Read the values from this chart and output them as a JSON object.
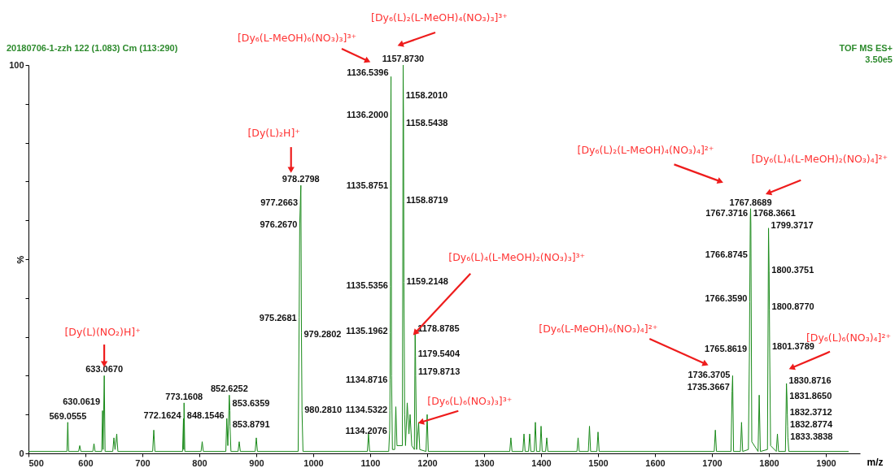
{
  "chart_data": {
    "type": "line",
    "xlabel": "m/z",
    "ylabel": "%",
    "color": "#1a8a1a",
    "xlim": [
      500,
      1960
    ],
    "xticks": [
      500,
      600,
      700,
      800,
      900,
      1000,
      1100,
      1200,
      1300,
      1400,
      1500,
      1600,
      1700,
      1800,
      1900
    ],
    "ylim": [
      0,
      100
    ],
    "yticks": [
      0,
      {
        "value": 10,
        "label": null
      },
      {
        "value": 20,
        "label": null
      },
      {
        "value": 30,
        "label": null
      },
      {
        "value": 40,
        "label": null
      },
      {
        "value": 50,
        "label": null
      },
      {
        "value": 60,
        "label": null
      },
      {
        "value": 70,
        "label": null
      },
      {
        "value": 80,
        "label": null
      },
      {
        "value": 90,
        "label": null
      },
      100
    ],
    "x": [
      500,
      567.5,
      569,
      570.5,
      588,
      590,
      592,
      613,
      615,
      617,
      628.5,
      630.06,
      631,
      633.07,
      634.5,
      648,
      650,
      652,
      655,
      657,
      718,
      720,
      722,
      770.5,
      772.16,
      772.7,
      773.16,
      774.5,
      803,
      805,
      807,
      846.5,
      848.15,
      850,
      852.63,
      853.64,
      853.88,
      855.5,
      868,
      870,
      872,
      898,
      900,
      902,
      973.5,
      975.27,
      976.27,
      977.27,
      978.28,
      979.28,
      980.28,
      982,
      1095,
      1097,
      1099,
      1132.5,
      1134.21,
      1134.53,
      1134.87,
      1135.2,
      1135.54,
      1135.88,
      1136.2,
      1136.54,
      1137.5,
      1139,
      1143,
      1145,
      1147,
      1156.5,
      1157.87,
      1158.2,
      1158.54,
      1158.87,
      1159.21,
      1160.5,
      1162,
      1165,
      1168,
      1170,
      1173,
      1177.5,
      1178.88,
      1179.54,
      1179.87,
      1181.5,
      1185,
      1187,
      1198,
      1200,
      1202,
      1345,
      1347,
      1349,
      1368,
      1370,
      1372,
      1378,
      1380,
      1382,
      1388,
      1390,
      1392,
      1398,
      1400,
      1402,
      1408,
      1410,
      1412,
      1463,
      1465,
      1467,
      1483,
      1485,
      1487,
      1498,
      1500,
      1502,
      1704,
      1706,
      1708,
      1733.5,
      1735.37,
      1736.37,
      1738,
      1750,
      1752,
      1754,
      1764,
      1765.86,
      1766.36,
      1766.87,
      1767.37,
      1767.87,
      1768.37,
      1770,
      1781,
      1783,
      1785,
      1797.5,
      1799.37,
      1800.38,
      1800.88,
      1801.38,
      1803,
      1813,
      1815,
      1817,
      1829,
      1830.87,
      1831.87,
      1832.37,
      1832.88,
      1833.38,
      1835,
      1940
    ],
    "values": [
      0.5,
      0.5,
      8,
      0.5,
      0.5,
      2,
      0.5,
      0.5,
      2.5,
      0.5,
      0.5,
      11,
      1,
      20,
      0.5,
      0.5,
      4,
      1,
      5,
      0.5,
      0.5,
      6,
      0.5,
      0.5,
      9,
      1,
      13,
      0.5,
      0.5,
      3,
      0.5,
      0.5,
      9,
      2,
      15,
      11,
      7,
      0.5,
      0.5,
      3,
      0.5,
      0.5,
      4,
      0.5,
      0.5,
      35,
      59,
      64,
      69,
      31,
      11,
      0.5,
      0.5,
      5,
      0.5,
      0.5,
      6,
      11,
      19,
      31,
      43,
      69,
      87,
      97,
      20,
      1,
      1,
      12,
      2,
      2,
      100,
      92,
      85,
      65,
      44,
      10,
      2,
      13,
      5,
      10,
      2,
      1,
      31,
      25,
      20,
      1,
      8,
      1,
      0.5,
      10,
      0.5,
      0.5,
      4,
      0.5,
      0.5,
      5,
      0.5,
      0.5,
      5,
      0.5,
      0.5,
      8,
      0.5,
      0.5,
      7,
      0.5,
      0.5,
      4,
      0.5,
      0.5,
      4,
      0.5,
      0.5,
      7,
      0.5,
      0.5,
      5.5,
      0.5,
      0.5,
      6,
      0.5,
      0.5,
      16,
      20,
      0.5,
      0.5,
      8,
      0.5,
      1,
      26,
      39,
      50,
      61,
      63,
      59,
      3,
      0.5,
      15,
      0.5,
      1,
      58,
      47,
      37,
      27,
      2,
      0.5,
      5,
      0.5,
      0.5,
      18,
      14,
      10,
      7,
      4,
      0.5,
      0.5
    ],
    "annotations": [
      "20180706-1-zzh 122 (1.083) Cm (113:290)",
      "TOF MS ES+",
      "3.50e5",
      "[Dy₆(L-MeOH)₆(NO₃)₃]³⁺",
      "[Dy₆(L)₂(L-MeOH)₄(NO₃)₃]³⁺",
      {
        "text": "[Dy(L)(NO₂)H]⁺",
        "x": 633,
        "y": 23
      },
      {
        "text": "[Dy(L)₂H]⁺",
        "x": 961,
        "y": 73
      },
      {
        "text": "[Dy₆(L)₄(L-MeOH)₂(NO₃)₃]³⁺",
        "x": 1178.88,
        "y": 31
      },
      {
        "text": "[Dy₆(L)₆(NO₃)₃]³⁺",
        "x": 1189,
        "y": 8
      },
      {
        "text": "[Dy₆(L-MeOH)₆(NO₃)₄]²⁺",
        "x": 1689,
        "y": 23
      },
      {
        "text": "[Dy₆(L)₂(L-MeOH)₄(NO₃)₄]²⁺",
        "x": 1715,
        "y": 70
      },
      {
        "text": "[Dy₆(L)₄(L-MeOH)₂(NO₃)₄]²⁺",
        "x": 1799,
        "y": 67
      },
      {
        "text": "[Dy₆(L)₆(NO₃)₄]²⁺",
        "x": 1840,
        "y": 22
      },
      {
        "text": "569.0555",
        "x": 569.0555,
        "y": 8
      },
      {
        "text": "630.0619",
        "x": 630.0619,
        "y": 13.2
      },
      {
        "text": "633.0670",
        "x": 633.067,
        "y": 20
      },
      {
        "text": "772.1624",
        "x": 772.1624,
        "y": 9.6
      },
      {
        "text": "773.1608",
        "x": 773.1608,
        "y": 13
      },
      {
        "text": "848.1546",
        "x": 848.1546,
        "y": 9.6
      },
      {
        "text": "852.6252",
        "x": 852.6252,
        "y": 15
      },
      {
        "text": "853.6359",
        "x": 853.6359,
        "y": 12.8
      },
      {
        "text": "853.8791",
        "x": 853.8791,
        "y": 7.3
      },
      {
        "text": "975.2681",
        "x": 975.2681,
        "y": 34.7
      },
      {
        "text": "976.2670",
        "x": 976.267,
        "y": 58.8
      },
      {
        "text": "977.2663",
        "x": 977.2663,
        "y": 64.4
      },
      {
        "text": "978.2798",
        "x": 978.2798,
        "y": 69
      },
      {
        "text": "979.2802",
        "x": 979.2802,
        "y": 30.5
      },
      {
        "text": "980.2810",
        "x": 980.281,
        "y": 11.1
      },
      {
        "text": "1134.2076",
        "x": 1134.2076,
        "y": 5.6
      },
      {
        "text": "1134.5322",
        "x": 1134.5322,
        "y": 11.1
      },
      {
        "text": "1134.8716",
        "x": 1134.8716,
        "y": 18.8
      },
      {
        "text": "1135.1962",
        "x": 1135.1962,
        "y": 31.4
      },
      {
        "text": "1135.5356",
        "x": 1135.5356,
        "y": 43.1
      },
      {
        "text": "1135.8751",
        "x": 1135.8751,
        "y": 68.8
      },
      {
        "text": "1136.2000",
        "x": 1136.2,
        "y": 87
      },
      {
        "text": "1136.5396",
        "x": 1136.5396,
        "y": 97.9
      },
      {
        "text": "1157.8730",
        "x": 1157.873,
        "y": 100
      },
      {
        "text": "1158.2010",
        "x": 1158.201,
        "y": 92.1
      },
      {
        "text": "1158.5438",
        "x": 1158.5438,
        "y": 84.9
      },
      {
        "text": "1158.8719",
        "x": 1158.8719,
        "y": 65.1
      },
      {
        "text": "1159.2148",
        "x": 1159.2148,
        "y": 44.1
      },
      {
        "text": "1178.8785",
        "x": 1178.8785,
        "y": 32
      },
      {
        "text": "1179.5404",
        "x": 1179.5404,
        "y": 25.5
      },
      {
        "text": "1179.8713",
        "x": 1179.8713,
        "y": 20.9
      },
      {
        "text": "1735.3667",
        "x": 1735.3667,
        "y": 16.9
      },
      {
        "text": "1736.3705",
        "x": 1736.3705,
        "y": 20
      },
      {
        "text": "1765.8619",
        "x": 1765.8619,
        "y": 26.8
      },
      {
        "text": "1766.3590",
        "x": 1766.359,
        "y": 39.7
      },
      {
        "text": "1766.8745",
        "x": 1766.8745,
        "y": 51
      },
      {
        "text": "1767.3716",
        "x": 1767.3716,
        "y": 61.7
      },
      {
        "text": "1767.8689",
        "x": 1767.8689,
        "y": 63
      },
      {
        "text": "1768.3661",
        "x": 1768.3661,
        "y": 61.7
      },
      {
        "text": "1799.3717",
        "x": 1799.3717,
        "y": 58.6
      },
      {
        "text": "1800.3751",
        "x": 1800.3751,
        "y": 47.1
      },
      {
        "text": "1800.8770",
        "x": 1800.877,
        "y": 37.7
      },
      {
        "text": "1801.3789",
        "x": 1801.3789,
        "y": 27.4
      },
      {
        "text": "1830.8716",
        "x": 1830.8716,
        "y": 18.6
      },
      {
        "text": "1831.8650",
        "x": 1831.865,
        "y": 14.6
      },
      {
        "text": "1832.3712",
        "x": 1832.3712,
        "y": 10.5
      },
      {
        "text": "1832.8774",
        "x": 1832.8774,
        "y": 7.3
      },
      {
        "text": "1833.3838",
        "x": 1833.3838,
        "y": 4.2
      }
    ]
  }
}
